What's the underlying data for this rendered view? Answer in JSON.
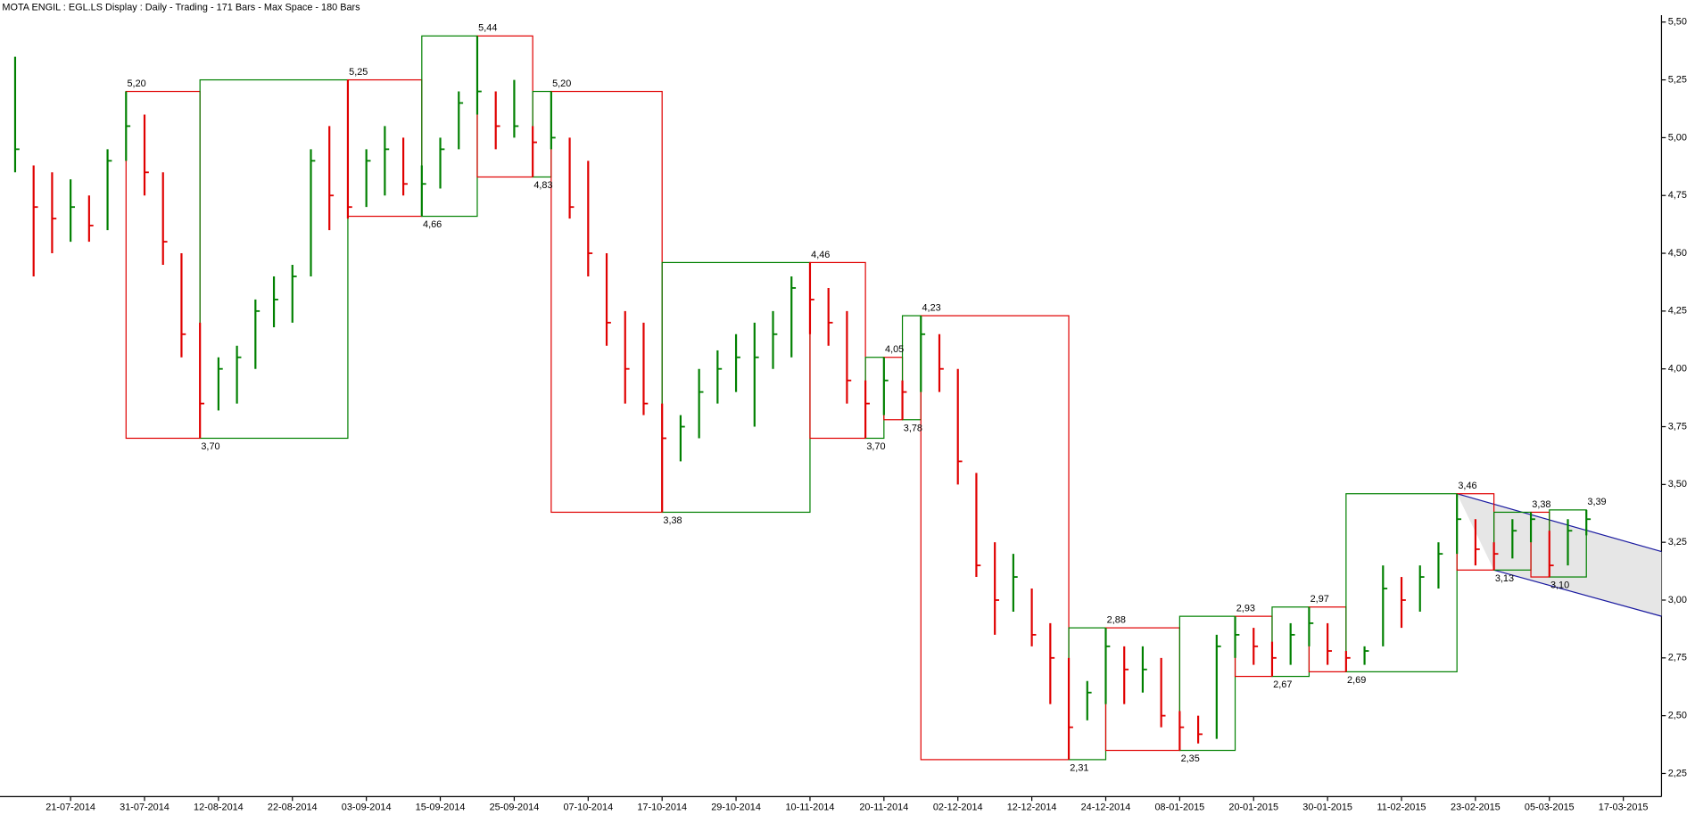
{
  "chart_data": {
    "type": "ohlc",
    "title": "MOTA ENGIL : EGL.LS Display :  Daily  - Trading - 171 Bars -  Max Space - 180 Bars",
    "categories": [
      null,
      null,
      null,
      "21-07-2014",
      null,
      null,
      null,
      "31-07-2014",
      null,
      null,
      null,
      "12-08-2014",
      null,
      null,
      null,
      "22-08-2014",
      null,
      null,
      null,
      "03-09-2014",
      null,
      null,
      null,
      "15-09-2014",
      null,
      null,
      null,
      "25-09-2014",
      null,
      null,
      null,
      "07-10-2014",
      null,
      null,
      null,
      "17-10-2014",
      null,
      null,
      null,
      "29-10-2014",
      null,
      null,
      null,
      "10-11-2014",
      null,
      null,
      null,
      "20-11-2014",
      null,
      null,
      null,
      "02-12-2014",
      null,
      null,
      null,
      "12-12-2014",
      null,
      null,
      null,
      "24-12-2014",
      null,
      null,
      null,
      "08-01-2015",
      null,
      null,
      null,
      "20-01-2015",
      null,
      null,
      null,
      "30-01-2015",
      null,
      null,
      null,
      "11-02-2015",
      null,
      null,
      null,
      "23-02-2015",
      null,
      null,
      null,
      "05-03-2015",
      null,
      null,
      null,
      "17-03-2015"
    ],
    "high": [
      5.35,
      4.88,
      4.85,
      4.82,
      4.75,
      4.95,
      5.2,
      5.1,
      4.85,
      4.5,
      4.2,
      4.05,
      4.1,
      4.3,
      4.4,
      4.45,
      4.95,
      5.05,
      5.25,
      4.95,
      5.05,
      5.0,
      4.88,
      5.0,
      5.2,
      5.44,
      5.2,
      5.25,
      5.05,
      5.2,
      5.0,
      4.9,
      4.5,
      4.25,
      4.2,
      3.85,
      3.8,
      4.0,
      4.08,
      4.15,
      4.2,
      4.25,
      4.4,
      4.46,
      4.35,
      4.25,
      3.95,
      4.05,
      3.95,
      4.23,
      4.15,
      4.0,
      3.55,
      3.25,
      3.2,
      3.05,
      2.9,
      2.75,
      2.65,
      2.88,
      2.8,
      2.8,
      2.75,
      2.52,
      2.5,
      2.85,
      2.93,
      2.88,
      2.82,
      2.9,
      2.97,
      2.9,
      2.78,
      2.8,
      3.15,
      3.1,
      3.15,
      3.25,
      3.46,
      3.35,
      3.25,
      3.35,
      3.38,
      3.3,
      3.35,
      3.39,
      null,
      null
    ],
    "low": [
      4.85,
      4.4,
      4.5,
      4.55,
      4.55,
      4.6,
      4.9,
      4.75,
      4.45,
      4.05,
      3.7,
      3.82,
      3.85,
      4.0,
      4.18,
      4.2,
      4.4,
      4.6,
      4.65,
      4.7,
      4.75,
      4.75,
      4.66,
      4.78,
      4.95,
      5.1,
      4.95,
      5.0,
      4.83,
      4.95,
      4.65,
      4.4,
      4.1,
      3.85,
      3.8,
      3.38,
      3.6,
      3.7,
      3.85,
      3.9,
      3.75,
      4.0,
      4.05,
      4.15,
      4.1,
      3.85,
      3.7,
      3.8,
      3.78,
      3.9,
      3.9,
      3.5,
      3.1,
      2.85,
      2.95,
      2.8,
      2.55,
      2.31,
      2.48,
      2.55,
      2.55,
      2.6,
      2.45,
      2.35,
      2.38,
      2.4,
      2.75,
      2.72,
      2.67,
      2.72,
      2.8,
      2.72,
      2.69,
      2.72,
      2.8,
      2.88,
      2.95,
      3.05,
      3.2,
      3.15,
      3.13,
      3.18,
      3.25,
      3.1,
      3.15,
      3.28,
      null,
      null
    ],
    "close": [
      4.95,
      4.7,
      4.65,
      4.7,
      4.62,
      4.9,
      5.05,
      4.85,
      4.55,
      4.15,
      3.85,
      4.0,
      4.05,
      4.25,
      4.3,
      4.4,
      4.9,
      4.75,
      4.7,
      4.9,
      4.95,
      4.8,
      4.8,
      4.95,
      5.15,
      5.2,
      5.05,
      5.05,
      4.98,
      5.0,
      4.7,
      4.5,
      4.2,
      4.0,
      3.85,
      3.7,
      3.75,
      3.9,
      4.0,
      4.05,
      4.05,
      4.15,
      4.35,
      4.3,
      4.2,
      3.95,
      3.85,
      3.95,
      3.9,
      4.15,
      4.0,
      3.6,
      3.15,
      3.0,
      3.1,
      2.85,
      2.75,
      2.45,
      2.6,
      2.8,
      2.7,
      2.7,
      2.5,
      2.45,
      2.42,
      2.8,
      2.85,
      2.8,
      2.75,
      2.85,
      2.9,
      2.78,
      2.75,
      2.78,
      3.05,
      3.0,
      3.1,
      3.2,
      3.35,
      3.22,
      3.2,
      3.3,
      3.35,
      3.15,
      3.3,
      3.35,
      null,
      null
    ],
    "up_color": "#008000",
    "down_color": "#e00000",
    "swings": {
      "values": [
        5.2,
        3.7,
        5.25,
        4.66,
        5.44,
        4.83,
        5.2,
        3.38,
        4.46,
        3.7,
        4.05,
        3.78,
        4.23,
        2.31,
        2.88,
        2.35,
        2.93,
        2.67,
        2.97,
        2.69,
        3.46,
        3.13,
        3.38,
        3.1,
        3.39
      ],
      "value_labels": [
        "5,20",
        "3,70",
        "5,25",
        "4,66",
        "5,44",
        "4,83",
        "5,20",
        "3,38",
        "4,46",
        "3,70",
        "4,05",
        "3,78",
        "4,23",
        "2,31",
        "2,88",
        "2,35",
        "2,93",
        "2,67",
        "2,97",
        "2,69",
        "3,46",
        "3,13",
        "3,38",
        "3,10",
        "3,39"
      ]
    },
    "channel": {
      "upper_end": 3.21,
      "lower_end": 2.93,
      "color": "#1a1aa0",
      "fill": "#e6e6e6"
    },
    "ylim": [
      2.15,
      5.53
    ],
    "yticks": [
      {
        "value": 2.25,
        "label": "2,25"
      },
      {
        "value": 2.5,
        "label": "2,50"
      },
      {
        "value": 2.75,
        "label": "2,75"
      },
      {
        "value": 3.0,
        "label": "3,00"
      },
      {
        "value": 3.25,
        "label": "3,25"
      },
      {
        "value": 3.5,
        "label": "3,50"
      },
      {
        "value": 3.75,
        "label": "3,75"
      },
      {
        "value": 4.0,
        "label": "4,00"
      },
      {
        "value": 4.25,
        "label": "4,25"
      },
      {
        "value": 4.5,
        "label": "4,50"
      },
      {
        "value": 4.75,
        "label": "4,75"
      },
      {
        "value": 5.0,
        "label": "5,00"
      },
      {
        "value": 5.25,
        "label": "5,25"
      },
      {
        "value": 5.5,
        "label": "5,50"
      }
    ]
  }
}
